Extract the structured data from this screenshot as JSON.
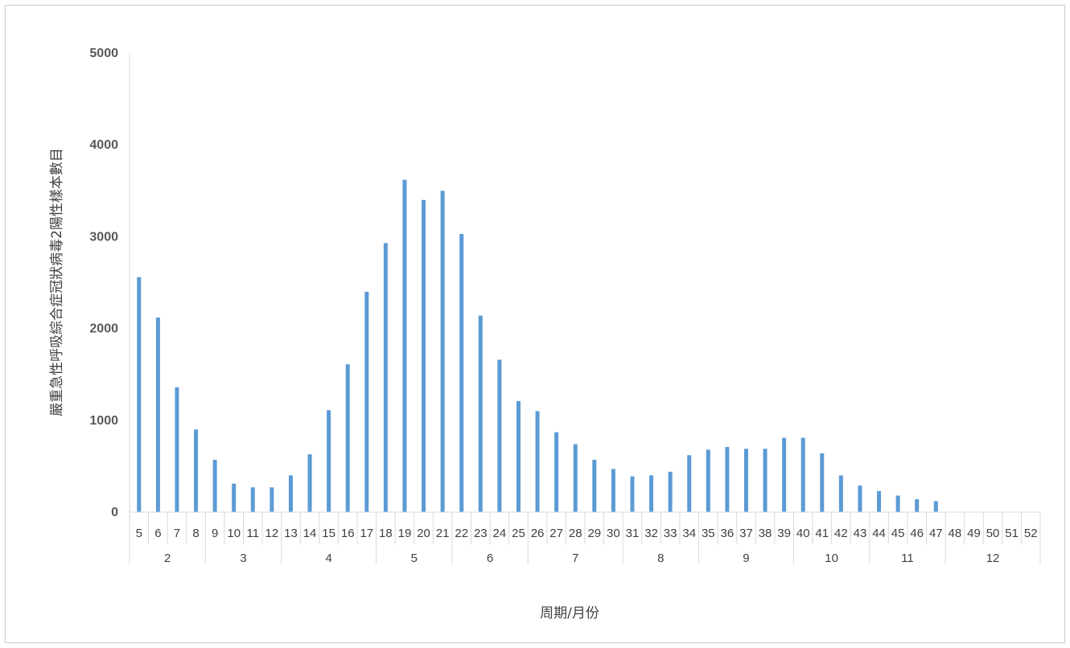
{
  "chart_data": {
    "type": "bar",
    "ylabel": "嚴重急性呼吸綜合症冠狀病毒2陽性樣本數目",
    "xlabel": "周期/月份",
    "ylim": [
      0,
      5000
    ],
    "yticks": [
      "0",
      "1000",
      "2000",
      "3000",
      "4000",
      "5000"
    ],
    "categories": [
      "5",
      "6",
      "7",
      "8",
      "9",
      "10",
      "11",
      "12",
      "13",
      "14",
      "15",
      "16",
      "17",
      "18",
      "19",
      "20",
      "21",
      "22",
      "23",
      "24",
      "25",
      "26",
      "27",
      "28",
      "29",
      "30",
      "31",
      "32",
      "33",
      "34",
      "35",
      "36",
      "37",
      "38",
      "39",
      "40",
      "41",
      "42",
      "43",
      "44",
      "45",
      "46",
      "47",
      "48",
      "49",
      "50",
      "51",
      "52"
    ],
    "values": [
      2560,
      2120,
      1360,
      900,
      570,
      310,
      270,
      270,
      400,
      630,
      1110,
      1610,
      2400,
      2930,
      3620,
      3400,
      3500,
      3030,
      2140,
      1660,
      1210,
      1100,
      870,
      740,
      570,
      470,
      390,
      400,
      440,
      620,
      680,
      710,
      690,
      690,
      810,
      810,
      640,
      400,
      290,
      230,
      180,
      140,
      120,
      0,
      0,
      0,
      0,
      0
    ],
    "months": [
      {
        "label": "2",
        "count": 4
      },
      {
        "label": "3",
        "count": 4
      },
      {
        "label": "4",
        "count": 5
      },
      {
        "label": "5",
        "count": 4
      },
      {
        "label": "6",
        "count": 4
      },
      {
        "label": "7",
        "count": 5
      },
      {
        "label": "8",
        "count": 4
      },
      {
        "label": "9",
        "count": 5
      },
      {
        "label": "10",
        "count": 4
      },
      {
        "label": "11",
        "count": 4
      },
      {
        "label": "12",
        "count": 5
      }
    ],
    "bar_color": "#5b9bd5",
    "grid": false
  }
}
